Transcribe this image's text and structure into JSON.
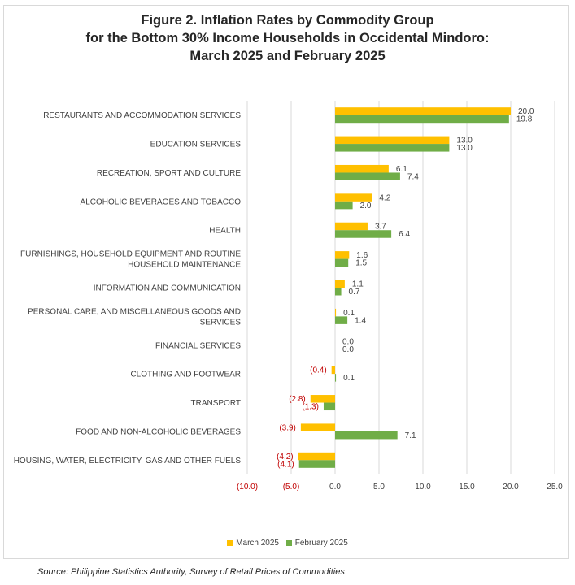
{
  "title_lines": [
    "Figure 2. Inflation Rates by Commodity Group",
    "for the Bottom 30% Income Households in Occidental Mindoro:",
    "March 2025 and February 2025"
  ],
  "source": "Source: Philippine Statistics Authority, Survey of Retail Prices of Commodities",
  "colors": {
    "march": "#FFC000",
    "february": "#70AD47",
    "negative_label": "#C00000",
    "label": "#404040",
    "grid": "#d9d9d9"
  },
  "chart_data": {
    "type": "bar",
    "orientation": "horizontal",
    "categories": [
      [
        "RESTAURANTS AND ACCOMMODATION SERVICES"
      ],
      [
        "EDUCATION SERVICES"
      ],
      [
        "RECREATION, SPORT AND CULTURE"
      ],
      [
        "ALCOHOLIC BEVERAGES AND TOBACCO"
      ],
      [
        "HEALTH"
      ],
      [
        "FURNISHINGS, HOUSEHOLD EQUIPMENT AND ROUTINE",
        "HOUSEHOLD MAINTENANCE"
      ],
      [
        "INFORMATION AND COMMUNICATION"
      ],
      [
        "PERSONAL CARE, AND MISCELLANEOUS GOODS AND",
        "SERVICES"
      ],
      [
        "FINANCIAL SERVICES"
      ],
      [
        "CLOTHING AND FOOTWEAR"
      ],
      [
        "TRANSPORT"
      ],
      [
        "FOOD AND NON-ALCOHOLIC BEVERAGES"
      ],
      [
        "HOUSING, WATER, ELECTRICITY, GAS AND OTHER FUELS"
      ]
    ],
    "series": [
      {
        "name": "March 2025",
        "values": [
          20.0,
          13.0,
          6.1,
          4.2,
          3.7,
          1.6,
          1.1,
          0.1,
          0.0,
          -0.4,
          -2.8,
          -3.9,
          -4.2
        ]
      },
      {
        "name": "February 2025",
        "values": [
          19.8,
          13.0,
          7.4,
          2.0,
          6.4,
          1.5,
          0.7,
          1.4,
          0.0,
          0.1,
          -1.3,
          7.1,
          -4.1
        ]
      }
    ],
    "xlim": [
      -10.0,
      25.0
    ],
    "xticks": [
      -10,
      -5,
      0,
      5,
      10,
      15,
      20,
      25
    ],
    "xtick_labels": [
      "(10.0)",
      "(5.0)",
      "0.0",
      "5.0",
      "10.0",
      "15.0",
      "20.0",
      "25.0"
    ],
    "grid": true,
    "legend": "bottom"
  }
}
